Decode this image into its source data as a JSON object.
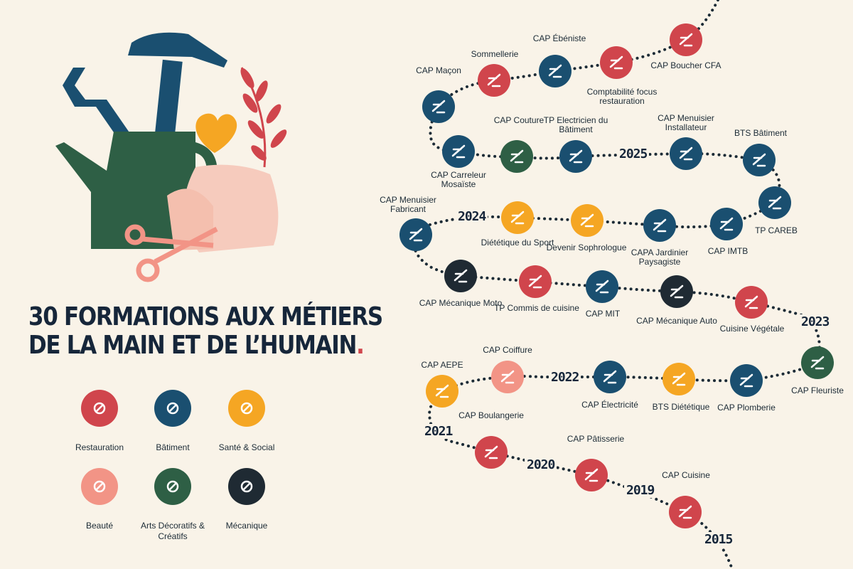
{
  "title_line1": "30 FORMATIONS AUX MÉTIERS",
  "title_line2": "DE LA MAIN ET DE L’HUMAIN",
  "title_dot": ".",
  "colors": {
    "background": "#f9f3e8",
    "navy": "#16263a",
    "restauration": "#d0454c",
    "batiment": "#1a4f70",
    "sante": "#f5a623",
    "beaute": "#f29486",
    "arts": "#2e5f45",
    "mecanique": "#1f2a33",
    "path": "#1c2b36"
  },
  "categories": [
    {
      "label": "Restauration",
      "color": "#d0454c",
      "icon": "knife-icon"
    },
    {
      "label": "Bâtiment",
      "color": "#1a4f70",
      "icon": "trowel-bricks-icon"
    },
    {
      "label": "Santé & Social",
      "color": "#f5a623",
      "icon": "heart-hand-icon"
    },
    {
      "label": "Beauté",
      "color": "#f29486",
      "icon": "cosmetics-icon"
    },
    {
      "label": "Arts Décoratifs & Créatifs",
      "color": "#2e5f45",
      "icon": "craft-basket-icon"
    },
    {
      "label": "Mécanique",
      "color": "#1f2a33",
      "icon": "wrench-gear-icon"
    }
  ],
  "formations": [
    {
      "label": "CAP Boucher CFA",
      "category": "Restauration",
      "icon": "meat-icon"
    },
    {
      "label": "CAP Ébéniste",
      "category": "Bâtiment",
      "icon": "chisel-icon"
    },
    {
      "label": "Sommellerie",
      "category": "Restauration",
      "icon": "grapes-icon"
    },
    {
      "label": "Comptabilité focus restauration",
      "category": "Restauration",
      "icon": "calculator-icon"
    },
    {
      "label": "CAP Maçon",
      "category": "Bâtiment",
      "icon": "bricks-icon"
    },
    {
      "label": "CAP Carreleur Mosaïste",
      "category": "Bâtiment",
      "icon": "tiles-icon"
    },
    {
      "label": "CAP Couture",
      "category": "Arts Décoratifs & Créatifs",
      "icon": "needle-icon"
    },
    {
      "label": "TP Electricien du Bâtiment",
      "category": "Bâtiment",
      "icon": "plug-icon"
    },
    {
      "label": "CAP Menuisier Installateur",
      "category": "Bâtiment",
      "icon": "window-icon"
    },
    {
      "label": "BTS Bâtiment",
      "category": "Bâtiment",
      "icon": "crane-icon"
    },
    {
      "label": "TP CAREB",
      "category": "Bâtiment",
      "icon": "house-icon"
    },
    {
      "label": "CAP IMTB",
      "category": "Bâtiment",
      "icon": "drill-icon"
    },
    {
      "label": "CAPA Jardinier Paysagiste",
      "category": "Bâtiment",
      "icon": "leaves-icon"
    },
    {
      "label": "Devenir Sophrologue",
      "category": "Santé & Social",
      "icon": "lotus-icon"
    },
    {
      "label": "Diététique du Sport",
      "category": "Santé & Social",
      "icon": "apple-icon"
    },
    {
      "label": "CAP Menuisier Fabricant",
      "category": "Bâtiment",
      "icon": "saw-icon"
    },
    {
      "label": "CAP Mécanique Moto",
      "category": "Mécanique",
      "icon": "moto-icon"
    },
    {
      "label": "TP Commis de cuisine",
      "category": "Restauration",
      "icon": "knife-icon"
    },
    {
      "label": "CAP MIT",
      "category": "Bâtiment",
      "icon": "thermometer-icon"
    },
    {
      "label": "CAP Mécanique Auto",
      "category": "Mécanique",
      "icon": "car-icon"
    },
    {
      "label": "Cuisine Végétale",
      "category": "Restauration",
      "icon": "broccoli-icon"
    },
    {
      "label": "CAP Fleuriste",
      "category": "Arts Décoratifs & Créatifs",
      "icon": "flower-pot-icon"
    },
    {
      "label": "CAP Plomberie",
      "category": "Bâtiment",
      "icon": "faucet-icon"
    },
    {
      "label": "BTS Diététique",
      "category": "Santé & Social",
      "icon": "clipboard-icon"
    },
    {
      "label": "CAP Électricité",
      "category": "Bâtiment",
      "icon": "plug-icon"
    },
    {
      "label": "CAP Coiffure",
      "category": "Beauté",
      "icon": "scissors-icon"
    },
    {
      "label": "CAP AEPE",
      "category": "Santé & Social",
      "icon": "mobile-toy-icon"
    },
    {
      "label": "CAP Boulangerie",
      "category": "Restauration",
      "icon": "wheat-icon"
    },
    {
      "label": "CAP Pâtisserie",
      "category": "Restauration",
      "icon": "mixer-icon"
    },
    {
      "label": "CAP Cuisine",
      "category": "Restauration",
      "icon": "knife-icon"
    }
  ],
  "years": [
    "2025",
    "2024",
    "2023",
    "2022",
    "2021",
    "2020",
    "2019",
    "2015"
  ]
}
